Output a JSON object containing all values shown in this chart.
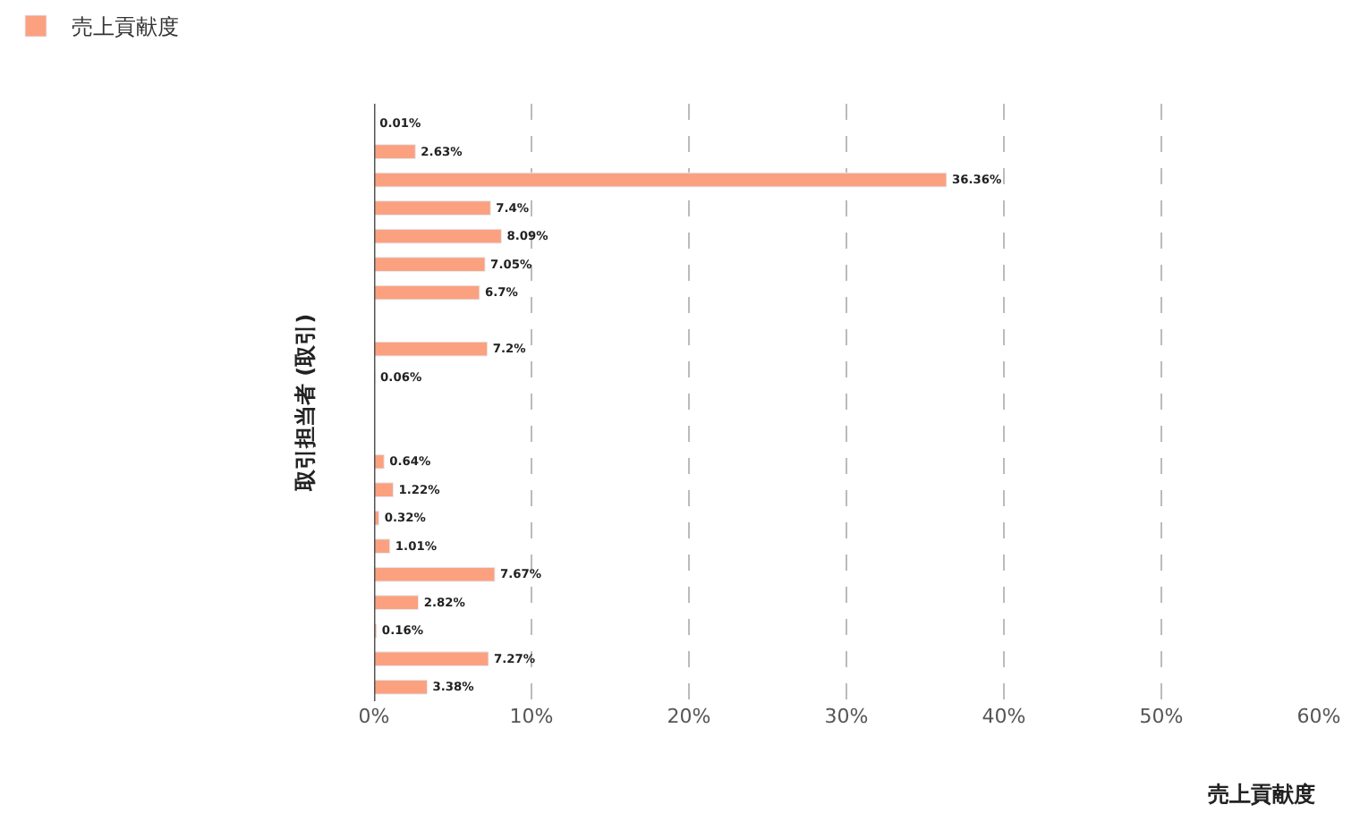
{
  "chart_data": {
    "type": "bar",
    "orientation": "horizontal",
    "xlabel": "売上貢献度",
    "ylabel": "取引担当者 (取引)",
    "categories": [
      null,
      null,
      null,
      null,
      null,
      null,
      null,
      null,
      null,
      null,
      null,
      null,
      null,
      null,
      null,
      null,
      null,
      null,
      null,
      null,
      null
    ],
    "series": [
      {
        "name": "売上貢献度",
        "color": "#fba17f",
        "values": [
          0.01,
          2.63,
          36.36,
          7.4,
          8.09,
          7.05,
          6.7,
          null,
          7.2,
          0.06,
          null,
          null,
          0.64,
          1.22,
          0.32,
          1.01,
          7.67,
          2.82,
          0.16,
          7.27,
          3.38
        ],
        "value_labels": [
          "0.01%",
          "2.63%",
          "36.36%",
          "7.4%",
          "8.09%",
          "7.05%",
          "6.7%",
          null,
          "7.2%",
          "0.06%",
          null,
          null,
          "0.64%",
          "1.22%",
          "0.32%",
          "1.01%",
          "7.67%",
          "2.82%",
          "0.16%",
          "7.27%",
          "3.38%"
        ]
      }
    ],
    "xlim": [
      0,
      60
    ],
    "xticks": [
      {
        "value": 0,
        "label": "0%"
      },
      {
        "value": 10,
        "label": "10%"
      },
      {
        "value": 20,
        "label": "20%"
      },
      {
        "value": 30,
        "label": "30%"
      },
      {
        "value": 40,
        "label": "40%"
      },
      {
        "value": 50,
        "label": "50%"
      },
      {
        "value": 60,
        "label": "60%"
      }
    ],
    "grid": "x",
    "legend": "top left",
    "tick_labels": "x"
  }
}
